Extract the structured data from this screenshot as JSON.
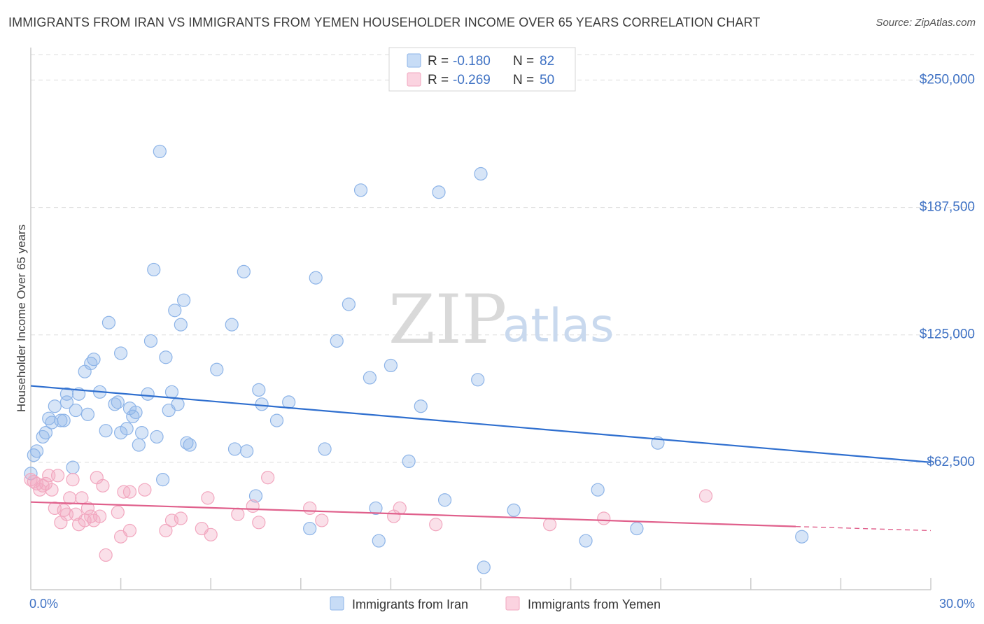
{
  "header": {
    "title": "IMMIGRANTS FROM IRAN VS IMMIGRANTS FROM YEMEN HOUSEHOLDER INCOME OVER 65 YEARS CORRELATION CHART",
    "source": "Source: ZipAtlas.com"
  },
  "watermark": {
    "zip": "ZIP",
    "atlas": "atlas"
  },
  "legend": {
    "rows": [
      {
        "r_label": "R =",
        "r_value": "-0.180",
        "n_label": "N =",
        "n_value": "82",
        "color": "#8db4e8"
      },
      {
        "r_label": "R =",
        "r_value": "-0.269",
        "n_label": "N =",
        "n_value": "50",
        "color": "#f2a7bf"
      }
    ]
  },
  "bottom_legend": [
    {
      "label": "Immigrants from Iran",
      "color": "#8db4e8"
    },
    {
      "label": "Immigrants from Yemen",
      "color": "#f2a7bf"
    }
  ],
  "chart_data": {
    "type": "scatter",
    "title": "IMMIGRANTS FROM IRAN VS IMMIGRANTS FROM YEMEN HOUSEHOLDER INCOME OVER 65 YEARS CORRELATION CHART",
    "xlabel": "",
    "ylabel": "Householder Income Over 65 years",
    "xlim": [
      0,
      30
    ],
    "ylim": [
      0,
      262500
    ],
    "x_tick_labels": [
      "0.0%",
      "30.0%"
    ],
    "y_ticks": [
      62500,
      125000,
      187500,
      250000
    ],
    "y_tick_labels": [
      "$62,500",
      "$125,000",
      "$187,500",
      "$250,000"
    ],
    "grid": true,
    "legend_position": "top-center",
    "series": [
      {
        "name": "Immigrants from Iran",
        "color": "#8db4e8",
        "line_color": "#2f6fcf",
        "trend": {
          "x": [
            0,
            30
          ],
          "y": [
            100000,
            62500
          ]
        },
        "points": [
          [
            0.1,
            66000
          ],
          [
            0.2,
            68000
          ],
          [
            0.4,
            75000
          ],
          [
            0.5,
            77000
          ],
          [
            0.6,
            84000
          ],
          [
            0.7,
            82000
          ],
          [
            0.8,
            90000
          ],
          [
            1.0,
            83000
          ],
          [
            1.1,
            83000
          ],
          [
            1.2,
            92000
          ],
          [
            1.2,
            96000
          ],
          [
            1.4,
            60000
          ],
          [
            1.5,
            88000
          ],
          [
            1.6,
            96000
          ],
          [
            1.8,
            107000
          ],
          [
            1.9,
            86000
          ],
          [
            2.0,
            111000
          ],
          [
            2.1,
            113000
          ],
          [
            2.3,
            97000
          ],
          [
            2.5,
            78000
          ],
          [
            2.6,
            131000
          ],
          [
            2.8,
            91000
          ],
          [
            2.9,
            92000
          ],
          [
            3.0,
            77000
          ],
          [
            3.0,
            116000
          ],
          [
            3.2,
            79000
          ],
          [
            3.3,
            89000
          ],
          [
            3.4,
            85000
          ],
          [
            3.5,
            87000
          ],
          [
            3.6,
            71000
          ],
          [
            3.7,
            77000
          ],
          [
            3.9,
            96000
          ],
          [
            4.0,
            122000
          ],
          [
            4.1,
            157000
          ],
          [
            4.2,
            75000
          ],
          [
            4.4,
            54000
          ],
          [
            4.3,
            215000
          ],
          [
            4.5,
            114000
          ],
          [
            4.6,
            88000
          ],
          [
            4.7,
            97000
          ],
          [
            4.8,
            137000
          ],
          [
            4.9,
            91000
          ],
          [
            5.0,
            130000
          ],
          [
            5.1,
            142000
          ],
          [
            5.2,
            72000
          ],
          [
            5.3,
            71000
          ],
          [
            6.2,
            108000
          ],
          [
            6.7,
            130000
          ],
          [
            6.8,
            69000
          ],
          [
            7.1,
            156000
          ],
          [
            7.2,
            68000
          ],
          [
            7.5,
            46000
          ],
          [
            7.6,
            98000
          ],
          [
            7.7,
            91000
          ],
          [
            8.2,
            83000
          ],
          [
            8.6,
            92000
          ],
          [
            9.3,
            30000
          ],
          [
            9.5,
            153000
          ],
          [
            9.8,
            69000
          ],
          [
            10.2,
            122000
          ],
          [
            10.6,
            140000
          ],
          [
            11.0,
            196000
          ],
          [
            11.3,
            104000
          ],
          [
            11.5,
            40000
          ],
          [
            11.6,
            24000
          ],
          [
            12.0,
            110000
          ],
          [
            12.6,
            63000
          ],
          [
            13.0,
            90000
          ],
          [
            13.6,
            195000
          ],
          [
            13.8,
            44000
          ],
          [
            14.9,
            103000
          ],
          [
            15.0,
            204000
          ],
          [
            15.1,
            11000
          ],
          [
            16.1,
            39000
          ],
          [
            18.5,
            24000
          ],
          [
            18.9,
            49000
          ],
          [
            20.2,
            30000
          ],
          [
            20.9,
            72000
          ],
          [
            25.7,
            26000
          ],
          [
            0.0,
            57000
          ]
        ]
      },
      {
        "name": "Immigrants from Yemen",
        "color": "#f2a7bf",
        "line_color": "#e0608c",
        "trend": {
          "x": [
            0,
            25.5
          ],
          "y": [
            43000,
            31000
          ]
        },
        "trend_dashed_to": {
          "x": 30,
          "y": 29000
        },
        "points": [
          [
            0.0,
            54000
          ],
          [
            0.2,
            52000
          ],
          [
            0.3,
            49000
          ],
          [
            0.4,
            51000
          ],
          [
            0.5,
            52000
          ],
          [
            0.6,
            56000
          ],
          [
            0.7,
            49000
          ],
          [
            0.8,
            40000
          ],
          [
            0.9,
            56000
          ],
          [
            1.0,
            33000
          ],
          [
            1.1,
            39000
          ],
          [
            1.2,
            37000
          ],
          [
            1.3,
            45000
          ],
          [
            1.4,
            54000
          ],
          [
            1.5,
            37000
          ],
          [
            1.6,
            32000
          ],
          [
            1.7,
            45000
          ],
          [
            1.8,
            34000
          ],
          [
            1.9,
            40000
          ],
          [
            2.0,
            36000
          ],
          [
            2.1,
            34000
          ],
          [
            2.2,
            55000
          ],
          [
            2.3,
            36000
          ],
          [
            2.4,
            51000
          ],
          [
            2.5,
            17000
          ],
          [
            2.9,
            38000
          ],
          [
            3.0,
            26000
          ],
          [
            3.1,
            48000
          ],
          [
            3.3,
            48000
          ],
          [
            3.3,
            29000
          ],
          [
            3.8,
            49000
          ],
          [
            4.5,
            29000
          ],
          [
            4.7,
            34000
          ],
          [
            5.0,
            35000
          ],
          [
            5.7,
            30000
          ],
          [
            5.9,
            45000
          ],
          [
            6.0,
            27000
          ],
          [
            6.9,
            37000
          ],
          [
            7.4,
            41000
          ],
          [
            7.6,
            33000
          ],
          [
            7.9,
            55000
          ],
          [
            9.3,
            40000
          ],
          [
            9.7,
            34000
          ],
          [
            12.1,
            36000
          ],
          [
            12.3,
            40000
          ],
          [
            13.5,
            32000
          ],
          [
            17.3,
            32000
          ],
          [
            19.1,
            35000
          ],
          [
            22.5,
            46000
          ],
          [
            0.1,
            53000
          ]
        ]
      }
    ]
  }
}
